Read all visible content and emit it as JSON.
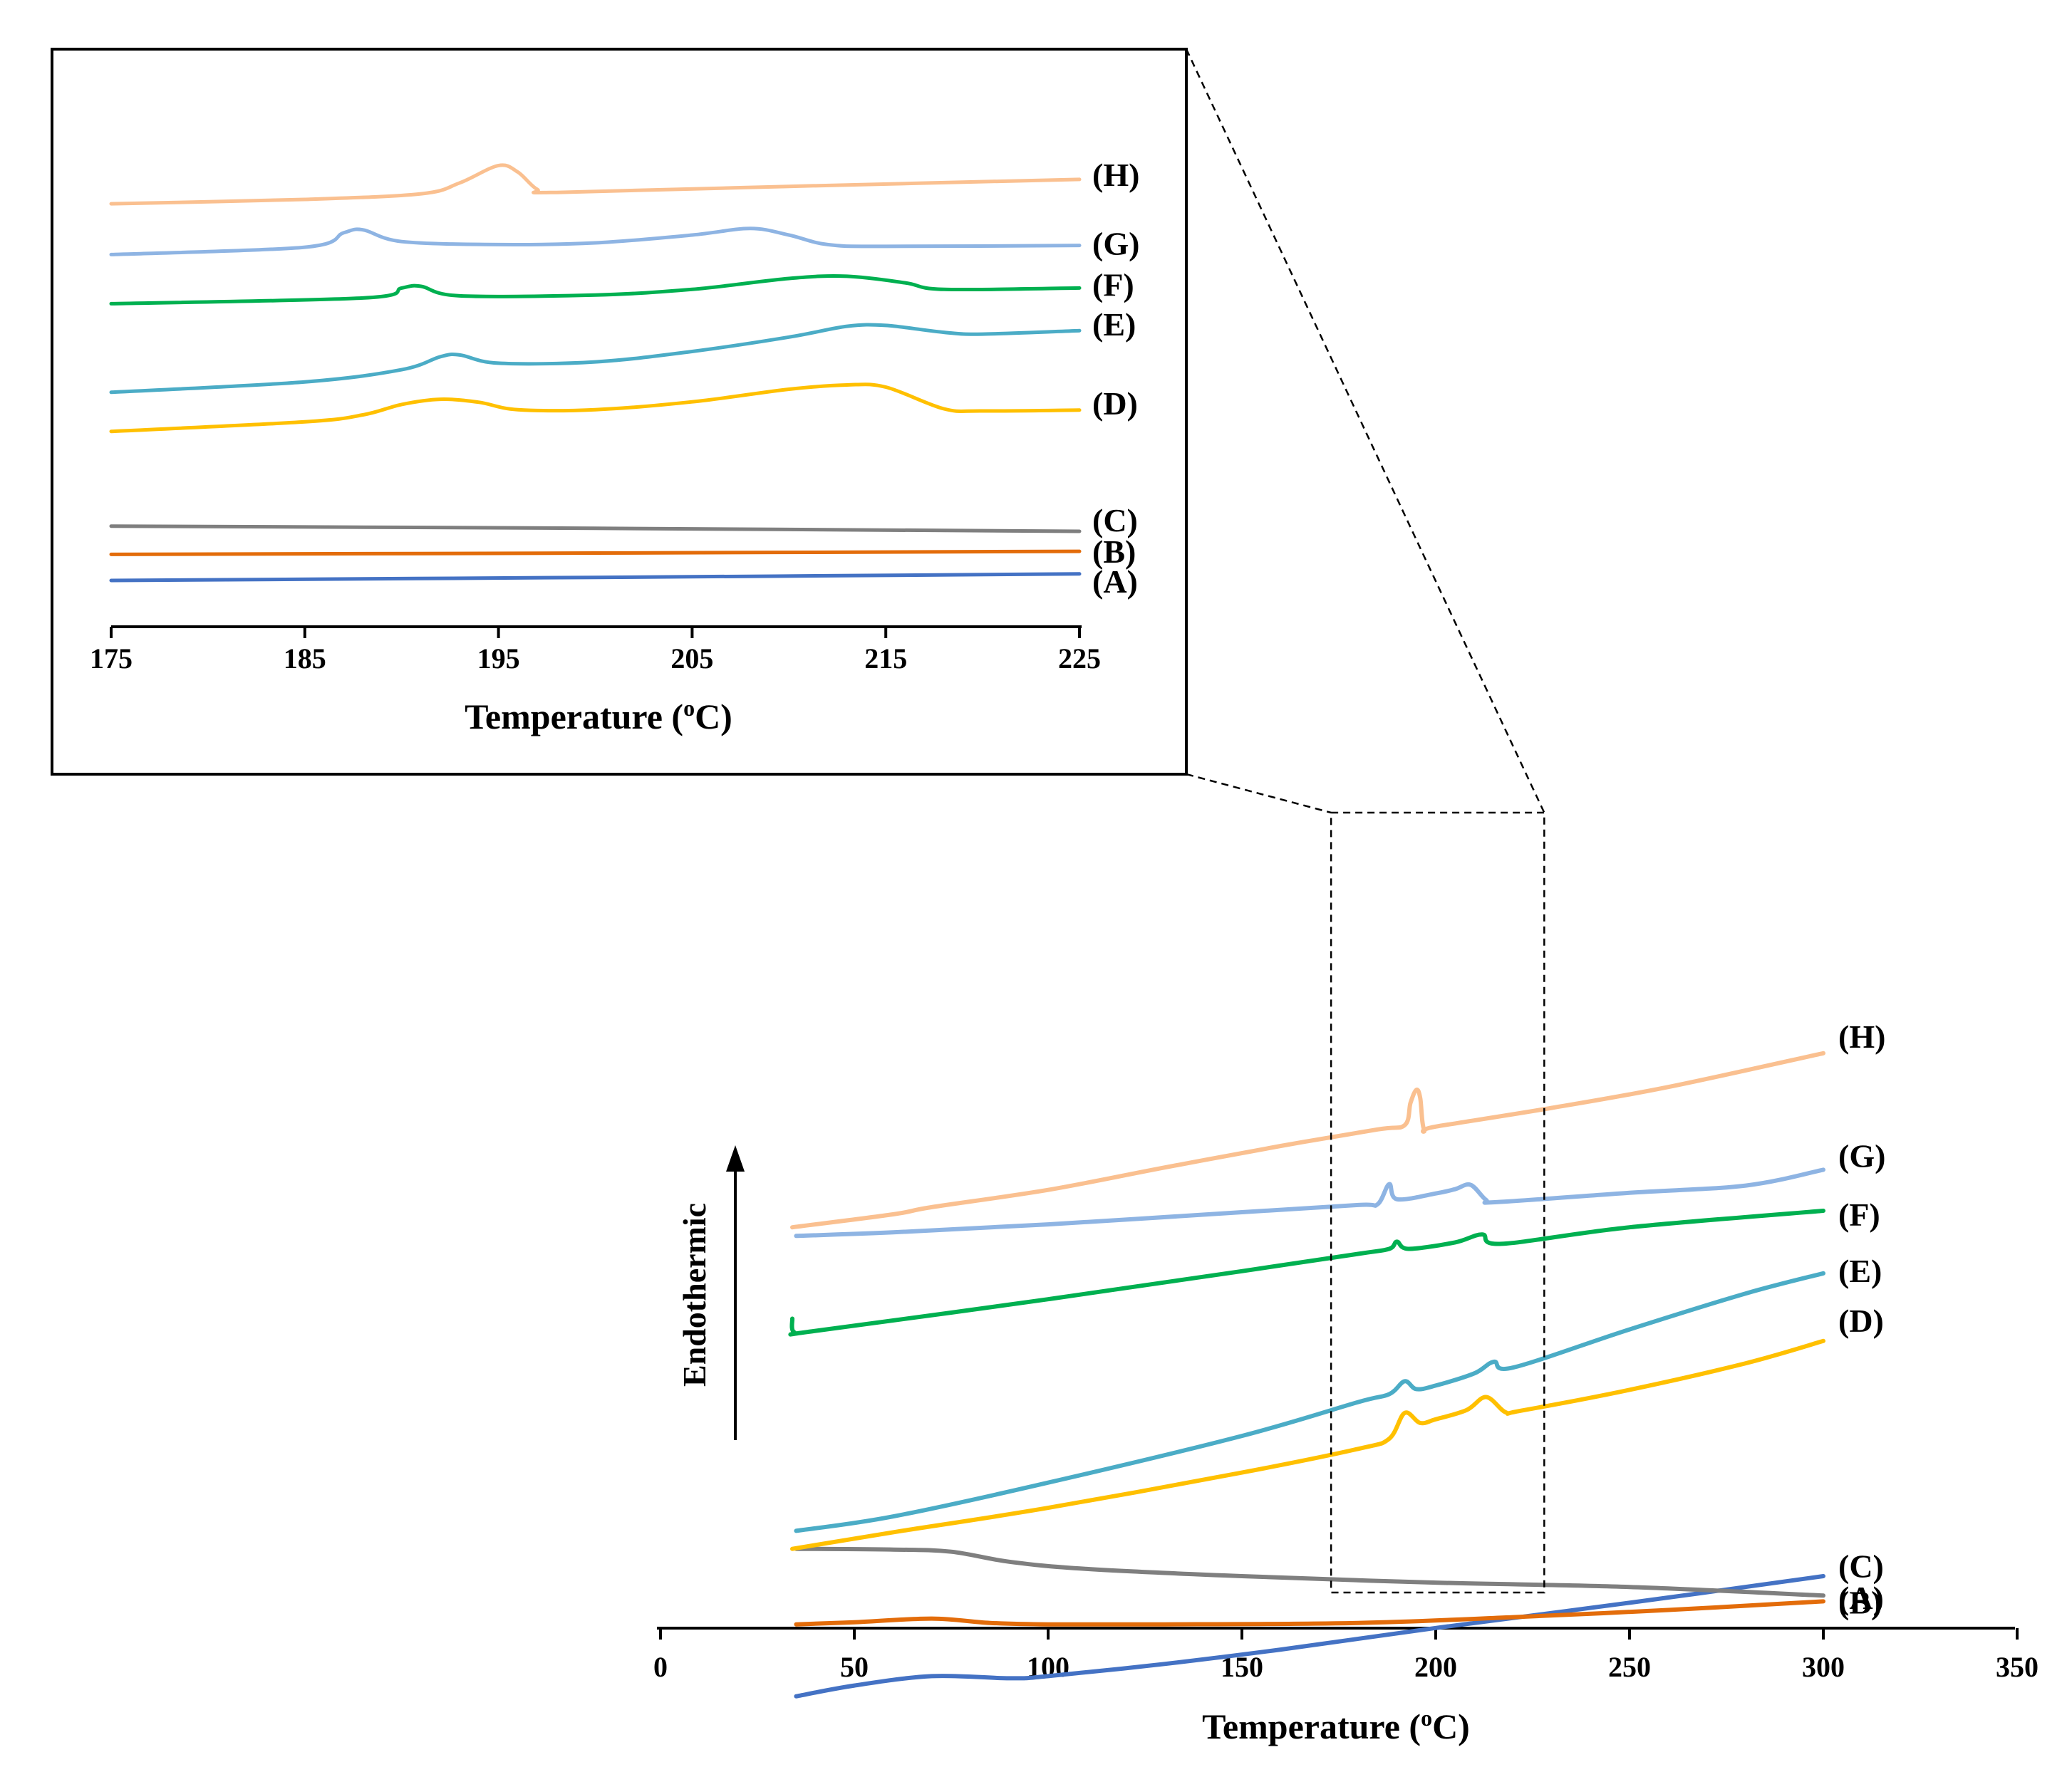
{
  "chart_data": [
    {
      "type": "line",
      "role": "main",
      "xlabel": "Temperature (oC)",
      "xlabel_parts": {
        "prefix": "Temperature (",
        "superscript": "o",
        "suffix": "C)"
      },
      "ylabel": "Endothermic",
      "xlim": [
        0,
        350
      ],
      "xticks": [
        0,
        50,
        100,
        150,
        200,
        250,
        300,
        350
      ],
      "zoom_region_x": [
        173,
        228
      ],
      "series": [
        {
          "name": "(A)",
          "color": "#4472C4",
          "points": [
            [
              35,
              -0.7
            ],
            [
              50,
              -0.55
            ],
            [
              70,
              -0.42
            ],
            [
              90,
              -0.45
            ],
            [
              100,
              -0.42
            ],
            [
              130,
              -0.25
            ],
            [
              160,
              -0.05
            ],
            [
              200,
              0.25
            ],
            [
              250,
              0.6
            ],
            [
              300,
              0.97
            ]
          ]
        },
        {
          "name": "(B)",
          "color": "#E36C0A",
          "points": [
            [
              35,
              0.3
            ],
            [
              50,
              0.33
            ],
            [
              70,
              0.38
            ],
            [
              85,
              0.32
            ],
            [
              100,
              0.3
            ],
            [
              130,
              0.3
            ],
            [
              180,
              0.32
            ],
            [
              220,
              0.4
            ],
            [
              260,
              0.5
            ],
            [
              300,
              0.62
            ]
          ]
        },
        {
          "name": "(C)",
          "color": "#7F7F7F",
          "points": [
            [
              35,
              1.35
            ],
            [
              60,
              1.34
            ],
            [
              75,
              1.31
            ],
            [
              90,
              1.17
            ],
            [
              110,
              1.07
            ],
            [
              150,
              0.97
            ],
            [
              200,
              0.88
            ],
            [
              250,
              0.82
            ],
            [
              300,
              0.7
            ]
          ]
        },
        {
          "name": "(D)",
          "color": "#FFC000",
          "points": [
            [
              34,
              1.35
            ],
            [
              60,
              1.58
            ],
            [
              100,
              1.92
            ],
            [
              150,
              2.41
            ],
            [
              180,
              2.74
            ],
            [
              188,
              2.88
            ],
            [
              192,
              3.24
            ],
            [
              196,
              3.1
            ],
            [
              200,
              3.15
            ],
            [
              208,
              3.28
            ],
            [
              213,
              3.46
            ],
            [
              218,
              3.25
            ],
            [
              222,
              3.27
            ],
            [
              250,
              3.56
            ],
            [
              280,
              3.93
            ],
            [
              300,
              4.24
            ]
          ]
        },
        {
          "name": "(E)",
          "color": "#4BACC6",
          "points": [
            [
              35,
              1.6
            ],
            [
              60,
              1.8
            ],
            [
              100,
              2.27
            ],
            [
              150,
              2.92
            ],
            [
              180,
              3.39
            ],
            [
              188,
              3.5
            ],
            [
              192,
              3.68
            ],
            [
              195,
              3.57
            ],
            [
              200,
              3.62
            ],
            [
              210,
              3.79
            ],
            [
              215,
              3.95
            ],
            [
              220,
              3.87
            ],
            [
              250,
              4.4
            ],
            [
              280,
              4.9
            ],
            [
              300,
              5.18
            ]
          ]
        },
        {
          "name": "(F)",
          "color": "#00B050",
          "points": [
            [
              34,
              4.55
            ],
            [
              34.5,
              4.36
            ],
            [
              40,
              4.38
            ],
            [
              100,
              4.82
            ],
            [
              150,
              5.21
            ],
            [
              180,
              5.45
            ],
            [
              188,
              5.52
            ],
            [
              190,
              5.62
            ],
            [
              193,
              5.52
            ],
            [
              205,
              5.61
            ],
            [
              212,
              5.72
            ],
            [
              217,
              5.59
            ],
            [
              250,
              5.82
            ],
            [
              300,
              6.05
            ]
          ]
        },
        {
          "name": "(G)",
          "color": "#8EB4E3",
          "points": [
            [
              35,
              5.7
            ],
            [
              60,
              5.75
            ],
            [
              100,
              5.86
            ],
            [
              150,
              6.03
            ],
            [
              180,
              6.13
            ],
            [
              185,
              6.14
            ],
            [
              188,
              6.42
            ],
            [
              190,
              6.21
            ],
            [
              200,
              6.29
            ],
            [
              205,
              6.35
            ],
            [
              209,
              6.41
            ],
            [
              213,
              6.2
            ],
            [
              216,
              6.17
            ],
            [
              250,
              6.3
            ],
            [
              280,
              6.4
            ],
            [
              300,
              6.62
            ]
          ]
        },
        {
          "name": "(H)",
          "color": "#FAC090",
          "points": [
            [
              34,
              5.82
            ],
            [
              60,
              6.0
            ],
            [
              70,
              6.1
            ],
            [
              100,
              6.34
            ],
            [
              130,
              6.65
            ],
            [
              160,
              6.95
            ],
            [
              185,
              7.18
            ],
            [
              192,
              7.24
            ],
            [
              193.5,
              7.55
            ],
            [
              195,
              7.73
            ],
            [
              196,
              7.62
            ],
            [
              197,
              7.18
            ],
            [
              200,
              7.22
            ],
            [
              230,
              7.48
            ],
            [
              260,
              7.77
            ],
            [
              300,
              8.24
            ]
          ]
        }
      ]
    },
    {
      "type": "line",
      "role": "inset",
      "xlabel": "Temperature (oC)",
      "xlabel_parts": {
        "prefix": "Temperature (",
        "superscript": "o",
        "suffix": "C)"
      },
      "xlim": [
        175,
        225
      ],
      "xticks": [
        175,
        185,
        195,
        205,
        215,
        225
      ],
      "series": [
        {
          "name": "(A)",
          "color": "#4472C4",
          "points": [
            [
              175,
              0.05
            ],
            [
              200,
              0.12
            ],
            [
              225,
              0.2
            ]
          ]
        },
        {
          "name": "(B)",
          "color": "#E36C0A",
          "points": [
            [
              175,
              0.65
            ],
            [
              200,
              0.68
            ],
            [
              225,
              0.72
            ]
          ]
        },
        {
          "name": "(C)",
          "color": "#7F7F7F",
          "points": [
            [
              175,
              1.3
            ],
            [
              200,
              1.25
            ],
            [
              225,
              1.18
            ]
          ]
        },
        {
          "name": "(D)",
          "color": "#FFC000",
          "points": [
            [
              175,
              3.48
            ],
            [
              185,
              3.7
            ],
            [
              188,
              3.86
            ],
            [
              190,
              4.1
            ],
            [
              192,
              4.22
            ],
            [
              194,
              4.15
            ],
            [
              196,
              3.98
            ],
            [
              200,
              3.98
            ],
            [
              205,
              4.16
            ],
            [
              210,
              4.45
            ],
            [
              213,
              4.55
            ],
            [
              215,
              4.5
            ],
            [
              218,
              4.0
            ],
            [
              220,
              3.95
            ],
            [
              225,
              3.97
            ]
          ]
        },
        {
          "name": "(E)",
          "color": "#4BACC6",
          "points": [
            [
              175,
              4.38
            ],
            [
              185,
              4.62
            ],
            [
              190,
              4.9
            ],
            [
              192,
              5.2
            ],
            [
              193,
              5.24
            ],
            [
              195,
              5.05
            ],
            [
              200,
              5.08
            ],
            [
              205,
              5.32
            ],
            [
              210,
              5.65
            ],
            [
              213,
              5.9
            ],
            [
              215,
              5.92
            ],
            [
              218,
              5.76
            ],
            [
              220,
              5.72
            ],
            [
              225,
              5.8
            ]
          ]
        },
        {
          "name": "(F)",
          "color": "#00B050",
          "points": [
            [
              175,
              6.42
            ],
            [
              188,
              6.55
            ],
            [
              190,
              6.78
            ],
            [
              191,
              6.82
            ],
            [
              193,
              6.6
            ],
            [
              200,
              6.62
            ],
            [
              205,
              6.75
            ],
            [
              210,
              7.0
            ],
            [
              213,
              7.05
            ],
            [
              216,
              6.9
            ],
            [
              218,
              6.75
            ],
            [
              225,
              6.78
            ]
          ]
        },
        {
          "name": "(G)",
          "color": "#8EB4E3",
          "points": [
            [
              175,
              7.55
            ],
            [
              185,
              7.72
            ],
            [
              187,
              8.05
            ],
            [
              188,
              8.12
            ],
            [
              190,
              7.85
            ],
            [
              195,
              7.78
            ],
            [
              200,
              7.82
            ],
            [
              205,
              8.0
            ],
            [
              208,
              8.15
            ],
            [
              210,
              8.0
            ],
            [
              212,
              7.78
            ],
            [
              215,
              7.74
            ],
            [
              225,
              7.76
            ]
          ]
        },
        {
          "name": "(H)",
          "color": "#FAC090",
          "points": [
            [
              175,
              8.72
            ],
            [
              185,
              8.82
            ],
            [
              191,
              8.95
            ],
            [
              193,
              9.2
            ],
            [
              195,
              9.6
            ],
            [
              196,
              9.45
            ],
            [
              197,
              9.05
            ],
            [
              198,
              8.98
            ],
            [
              210,
              9.12
            ],
            [
              225,
              9.28
            ]
          ]
        }
      ]
    }
  ]
}
